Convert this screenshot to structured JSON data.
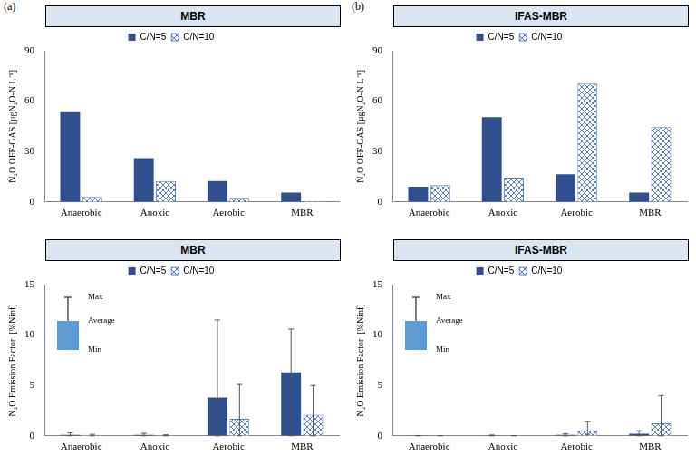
{
  "chart_data": [
    {
      "type": "bar",
      "title": "MBR",
      "annotations": [
        "(a)"
      ],
      "y_label": "N₂O OFF-GAS [μgN₂O-N L⁻¹]",
      "categories": [
        "Anaerobic",
        "Anoxic",
        "Aerobic",
        "MBR"
      ],
      "series": [
        {
          "name": "C/N=5",
          "color": "#2f4f8f",
          "values": [
            53.5,
            26,
            12.5,
            5.5
          ]
        },
        {
          "name": "C/N=10",
          "color": "#5b7fb8",
          "values": [
            3,
            12.5,
            2.5,
            0.5
          ]
        }
      ],
      "ylim": [
        0,
        90
      ],
      "yticks": [
        0,
        30,
        60,
        90
      ],
      "grid": false,
      "legend": "top"
    },
    {
      "type": "bar",
      "title": "IFAS-MBR",
      "annotations": [
        "(b)"
      ],
      "y_label": "N₂O OFF-GAS [μgN₂O-N L⁻¹]",
      "categories": [
        "Anaerobic",
        "Anoxic",
        "Aerobic",
        "MBR"
      ],
      "series": [
        {
          "name": "C/N=5",
          "color": "#2f4f8f",
          "values": [
            9,
            50.5,
            16.5,
            5.5
          ]
        },
        {
          "name": "C/N=10",
          "color": "#5b7fb8",
          "values": [
            10,
            14.5,
            70.5,
            44.5
          ]
        }
      ],
      "ylim": [
        0,
        90
      ],
      "yticks": [
        0,
        30,
        60,
        90
      ],
      "grid": false,
      "legend": "top"
    },
    {
      "type": "bar",
      "title": "MBR",
      "annotations": [
        "Max",
        "Average",
        "Min"
      ],
      "y_label": "N₂O Emission Factor  [%Ninf]",
      "categories": [
        "Anaerobic",
        "Anoxic",
        "Aerobic",
        "MBR"
      ],
      "series": [
        {
          "name": "C/N=5",
          "color": "#2f4f8f",
          "values": [
            0.1,
            0.1,
            3.8,
            6.3
          ],
          "error_min": [
            0,
            0,
            0,
            0
          ],
          "error_max": [
            0.3,
            0.25,
            11.5,
            10.6
          ]
        },
        {
          "name": "C/N=10",
          "color": "#5b7fb8",
          "values": [
            0.1,
            0.05,
            1.7,
            2.1
          ],
          "error_min": [
            0,
            0,
            0,
            0
          ],
          "error_max": [
            0.15,
            0.1,
            5.1,
            5.0
          ]
        }
      ],
      "ylim": [
        0,
        15
      ],
      "yticks": [
        0,
        5,
        10,
        15
      ],
      "grid": false,
      "legend": "top"
    },
    {
      "type": "bar",
      "title": "IFAS-MBR",
      "annotations": [
        "Max",
        "Average",
        "Min"
      ],
      "y_label": "N₂O Emission Factor  [%Ninf]",
      "categories": [
        "Anaerobic",
        "Anoxic",
        "Aerobic",
        "MBR"
      ],
      "series": [
        {
          "name": "C/N=5",
          "color": "#2f4f8f",
          "values": [
            0.02,
            0.03,
            0.1,
            0.2
          ],
          "error_min": [
            0,
            0,
            0,
            0
          ],
          "error_max": [
            0.03,
            0.08,
            0.2,
            0.5
          ]
        },
        {
          "name": "C/N=10",
          "color": "#5b7fb8",
          "values": [
            0.02,
            0.02,
            0.55,
            1.25
          ],
          "error_min": [
            0,
            0,
            0.1,
            0
          ],
          "error_max": [
            0.03,
            0.03,
            1.4,
            4.0
          ]
        }
      ],
      "ylim": [
        0,
        15
      ],
      "yticks": [
        0,
        5,
        10,
        15
      ],
      "grid": false,
      "legend": "top"
    }
  ]
}
